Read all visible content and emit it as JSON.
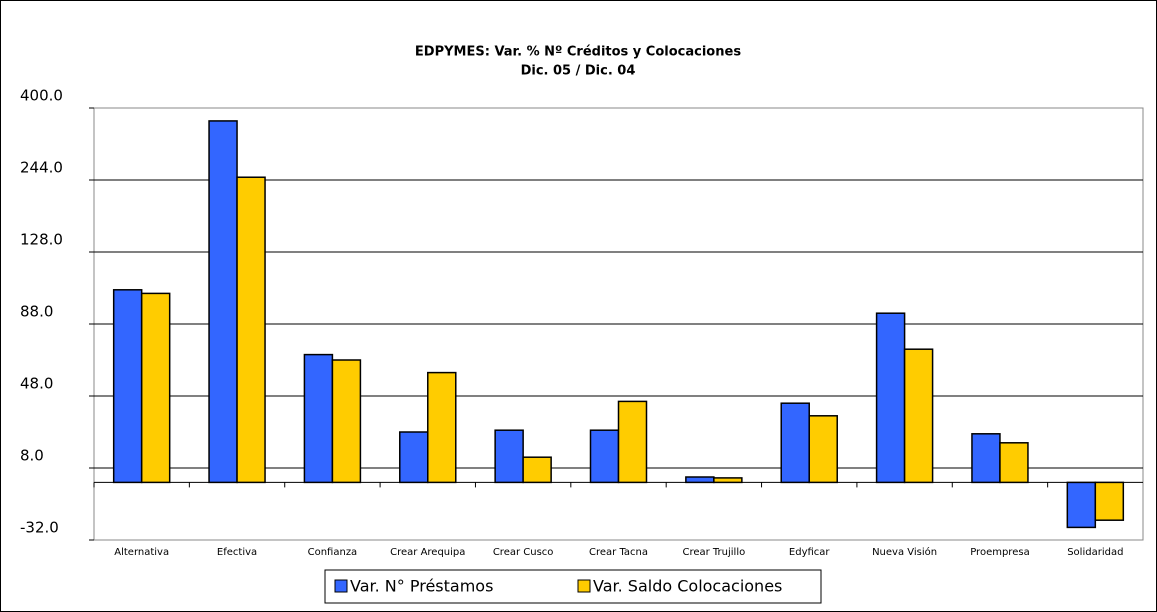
{
  "chart_data": {
    "type": "bar",
    "title": "EDPYMES: Var. % Nº Créditos y Colocaciones",
    "subtitle": "Dic. 05 / Dic. 04",
    "categories": [
      "Alternativa",
      "Efectiva",
      "Confianza",
      "Crear Arequipa",
      "Crear Cusco",
      "Crear Tacna",
      "Crear Trujillo",
      "Edyficar",
      "Nueva Visión",
      "Proempresa",
      "Solidaridad"
    ],
    "series": [
      {
        "name": "Var. N° Préstamos",
        "color": "#3366ff",
        "values": [
          107,
          372,
          71,
          28,
          29,
          29,
          3,
          44,
          94,
          27,
          -25
        ]
      },
      {
        "name": "Var. Saldo Colocaciones",
        "color": "#ffcc00",
        "values": [
          105,
          250,
          68,
          61,
          14,
          45,
          2.5,
          37,
          74,
          22,
          -21
        ]
      }
    ],
    "ylim": [
      -32,
      400
    ],
    "yticks": [
      {
        "value": -32,
        "label": "-32.0"
      },
      {
        "value": 8,
        "label": "8.0"
      },
      {
        "value": 48,
        "label": "48.0"
      },
      {
        "value": 88,
        "label": "88.0"
      },
      {
        "value": 128,
        "label": "128.0"
      },
      {
        "value": 244,
        "label": "244.0"
      },
      {
        "value": 400,
        "label": "400.0"
      }
    ],
    "grid": true,
    "legend": "bottom"
  }
}
